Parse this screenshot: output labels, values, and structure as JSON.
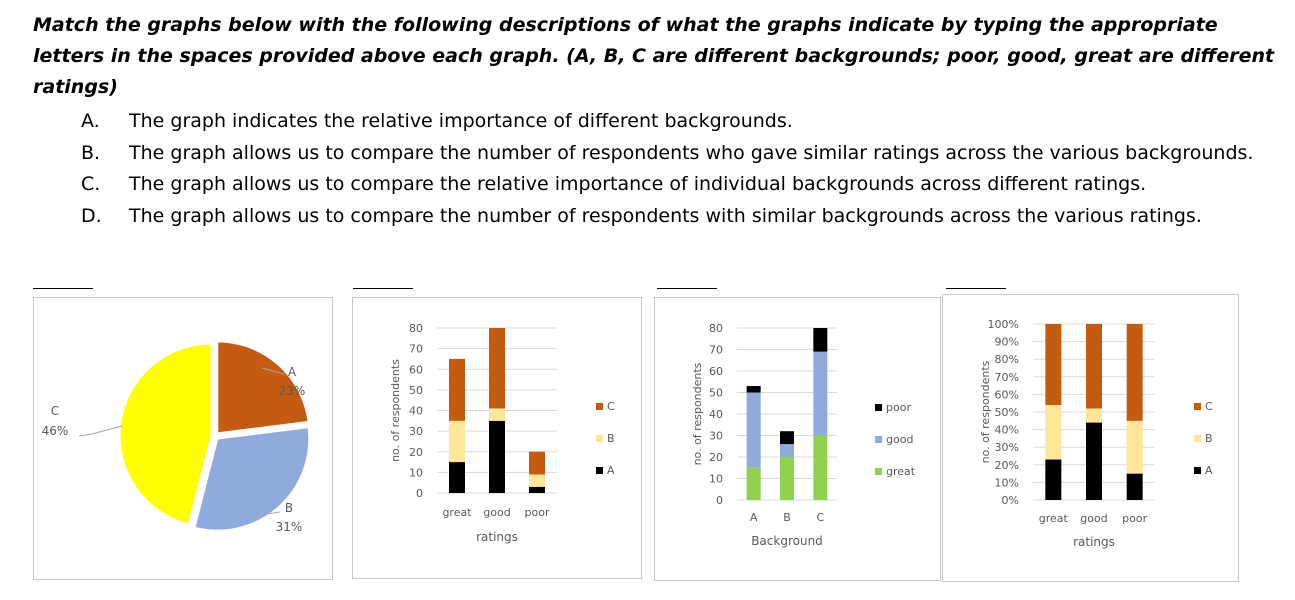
{
  "instructions": "Match the graphs below with the following descriptions of what the graphs indicate by typing the appropriate letters in the spaces provided above each graph. (A, B, C are different backgrounds; poor, good, great are different ratings)",
  "options": [
    {
      "letter": "A.",
      "text": "The graph indicates the relative importance of different backgrounds."
    },
    {
      "letter": "B.",
      "text": "The graph allows us to compare the number of respondents who gave similar ratings across the various backgrounds."
    },
    {
      "letter": "C.",
      "text": "The graph allows us to compare the relative importance of individual backgrounds across different ratings."
    },
    {
      "letter": "D.",
      "text": "The graph allows us to compare the number of respondents with similar backgrounds across the various ratings."
    }
  ],
  "answer_blanks": [
    "",
    "",
    "",
    ""
  ],
  "colors": {
    "A": "#000000",
    "B": "#ffe699",
    "C": "#c55a11",
    "pie_A": "#c55a11",
    "pie_B": "#8faadc",
    "pie_C": "#ffff00",
    "poor": "#000000",
    "good": "#8faadc",
    "great": "#92d050"
  },
  "chart_data": [
    {
      "type": "pie",
      "labels": [
        "A",
        "B",
        "C"
      ],
      "values": [
        23,
        31,
        46
      ],
      "value_labels": [
        "23%",
        "31%",
        "46%"
      ]
    },
    {
      "type": "bar",
      "stacked": true,
      "categories": [
        "great",
        "good",
        "poor"
      ],
      "xlabel": "ratings",
      "ylabel": "no. of respondents",
      "ylim": [
        0,
        80
      ],
      "yticks": [
        "0",
        "10",
        "20",
        "30",
        "40",
        "50",
        "60",
        "70",
        "80"
      ],
      "legend_position": "right",
      "series": [
        {
          "name": "A",
          "values": [
            15,
            35,
            3
          ]
        },
        {
          "name": "B",
          "values": [
            20,
            6,
            6
          ]
        },
        {
          "name": "C",
          "values": [
            30,
            39,
            11
          ]
        }
      ]
    },
    {
      "type": "bar",
      "stacked": true,
      "categories": [
        "A",
        "B",
        "C"
      ],
      "xlabel": "Background",
      "ylabel": "no. of respondents",
      "ylim": [
        0,
        80
      ],
      "yticks": [
        "0",
        "10",
        "20",
        "30",
        "40",
        "50",
        "60",
        "70",
        "80"
      ],
      "legend_position": "right",
      "series": [
        {
          "name": "great",
          "values": [
            15,
            20,
            30
          ]
        },
        {
          "name": "good",
          "values": [
            35,
            6,
            39
          ]
        },
        {
          "name": "poor",
          "values": [
            3,
            6,
            11
          ]
        }
      ]
    },
    {
      "type": "bar",
      "stacked": true,
      "percent": true,
      "categories": [
        "great",
        "good",
        "poor"
      ],
      "xlabel": "ratings",
      "ylabel": "no. of respondents",
      "ylim": [
        0,
        100
      ],
      "yticks": [
        "0%",
        "10%",
        "20%",
        "30%",
        "40%",
        "50%",
        "60%",
        "70%",
        "80%",
        "90%",
        "100%"
      ],
      "legend_position": "right",
      "series": [
        {
          "name": "A",
          "values": [
            23,
            44,
            15
          ]
        },
        {
          "name": "B",
          "values": [
            31,
            8,
            30
          ]
        },
        {
          "name": "C",
          "values": [
            46,
            48,
            55
          ]
        }
      ]
    }
  ]
}
